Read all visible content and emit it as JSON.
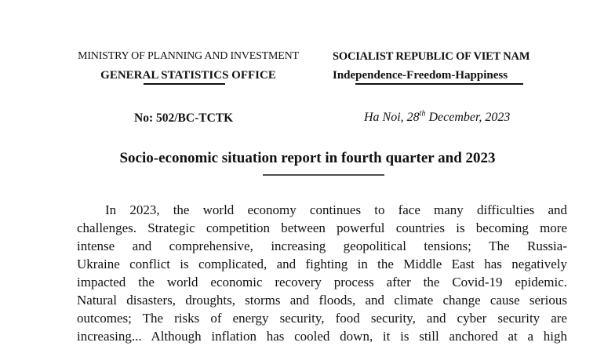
{
  "page": {
    "background": "#ffffff",
    "text_color": "#111111",
    "rule_color": "#111111",
    "title_rule_color": "#4d4d4d"
  },
  "header": {
    "left": {
      "line1": "MINISTRY OF PLANNING AND INVESTMENT",
      "line2": "GENERAL STATISTICS OFFICE"
    },
    "right": {
      "line1": "SOCIALIST REPUBLIC OF VIET NAM",
      "line2": "Independence-Freedom-Happiness"
    },
    "document_number": "No: 502/BC-TCTK",
    "date": {
      "prefix": "Ha Noi, 28",
      "superscript": "th",
      "suffix": " December, 2023"
    }
  },
  "title": "Socio-economic situation report in fourth quarter and 2023",
  "body": {
    "lines": [
      "In 2023, the world economy continues to face many difficulties and",
      "challenges. Strategic competition between powerful countries is becoming more",
      "intense and comprehensive, increasing geopolitical tensions; The Russia-",
      "Ukraine conflict is complicated, and fighting in the Middle East has negatively",
      "impacted the world economic recovery process after the Covid-19 epidemic.",
      "Natural disasters, droughts, storms and floods, and climate change cause serious",
      "outcomes; The risks of energy security, food security, and cyber security are",
      "increasing... Although inflation has cooled down, it is still anchored at a high"
    ]
  }
}
